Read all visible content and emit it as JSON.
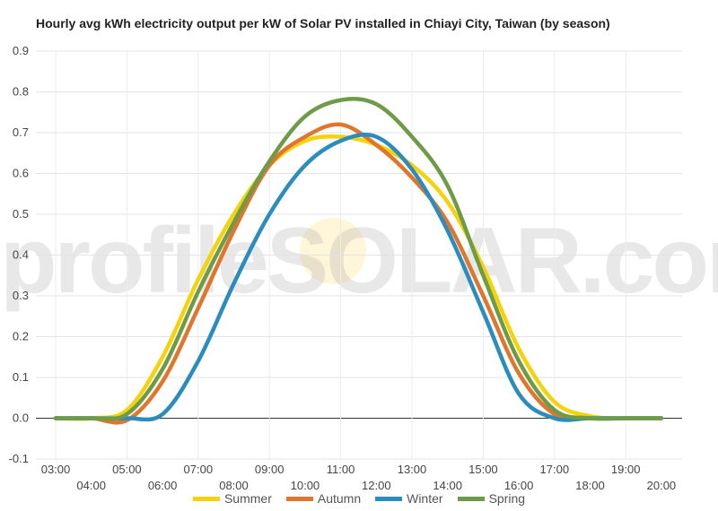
{
  "title": "Hourly avg kWh electricity output per kW of Solar PV installed in Chiayi City, Taiwan (by season)",
  "watermark": "profileSOLAR.com",
  "chart_data": {
    "type": "line",
    "title": "Hourly avg kWh electricity output per kW of Solar PV installed in Chiayi City, Taiwan (by season)",
    "xlabel": "",
    "ylabel": "",
    "categories": [
      "03:00",
      "04:00",
      "05:00",
      "06:00",
      "07:00",
      "08:00",
      "09:00",
      "10:00",
      "11:00",
      "12:00",
      "13:00",
      "14:00",
      "15:00",
      "16:00",
      "17:00",
      "18:00",
      "19:00",
      "20:00"
    ],
    "yticks": [
      "0.9",
      "0.8",
      "0.7",
      "0.6",
      "0.5",
      "0.4",
      "0.3",
      "0.2",
      "0.1",
      "0.0",
      "-0.1"
    ],
    "ylim": [
      -0.1,
      0.9
    ],
    "grid": true,
    "legend_position": "bottom",
    "series": [
      {
        "name": "Summer",
        "color": "#f5d20a",
        "values": [
          0.0,
          0.0,
          0.02,
          0.15,
          0.34,
          0.5,
          0.62,
          0.68,
          0.69,
          0.67,
          0.62,
          0.53,
          0.37,
          0.17,
          0.04,
          0.005,
          0.0,
          0.0
        ]
      },
      {
        "name": "Autumn",
        "color": "#e0752d",
        "values": [
          0.0,
          0.0,
          -0.005,
          0.09,
          0.27,
          0.46,
          0.62,
          0.69,
          0.72,
          0.67,
          0.59,
          0.48,
          0.3,
          0.11,
          0.01,
          0.0,
          0.0,
          0.0
        ]
      },
      {
        "name": "Winter",
        "color": "#2b8cbe",
        "values": [
          0.0,
          0.0,
          0.0,
          0.01,
          0.14,
          0.33,
          0.5,
          0.62,
          0.68,
          0.69,
          0.61,
          0.46,
          0.26,
          0.06,
          0.0,
          0.0,
          0.0,
          0.0
        ]
      },
      {
        "name": "Spring",
        "color": "#6e9b47",
        "values": [
          0.0,
          0.0,
          0.01,
          0.12,
          0.31,
          0.48,
          0.63,
          0.74,
          0.78,
          0.77,
          0.69,
          0.57,
          0.35,
          0.14,
          0.02,
          0.0,
          0.0,
          0.0
        ]
      }
    ]
  }
}
